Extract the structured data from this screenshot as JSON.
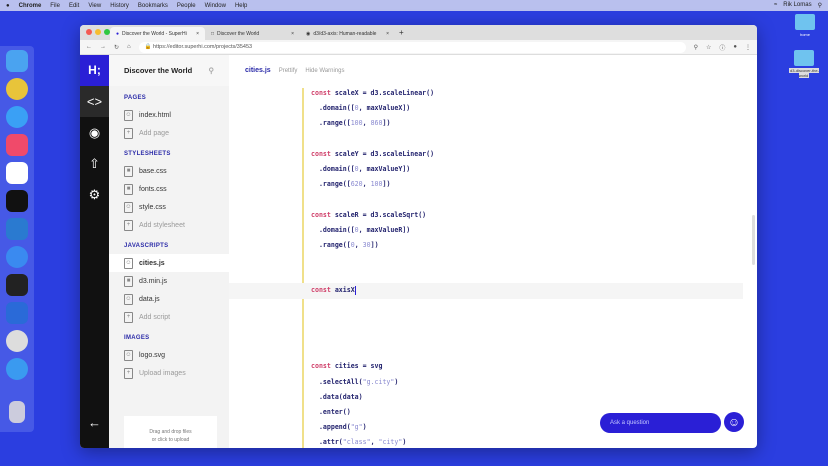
{
  "menubar": {
    "app": "Chrome",
    "items": [
      "File",
      "Edit",
      "View",
      "History",
      "Bookmarks",
      "People",
      "Window",
      "Help"
    ],
    "user": "Rik Lomas"
  },
  "desktop": {
    "folders": [
      "home",
      "d3-discover-the-world"
    ]
  },
  "browser": {
    "tabs": [
      "Discover the World - SuperHi",
      "Discover the World",
      "d3/d3-axis: Human-readable"
    ],
    "url": "https://editor.superhi.com/projects/35453"
  },
  "sidebar": {
    "title": "Discover the World",
    "sections": [
      {
        "title": "PAGES",
        "files": [
          "index.html"
        ],
        "add": "Add page"
      },
      {
        "title": "STYLESHEETS",
        "files": [
          "base.css",
          "fonts.css",
          "style.css"
        ],
        "add": "Add stylesheet"
      },
      {
        "title": "JAVASCRIPTS",
        "files": [
          "cities.js",
          "d3.min.js",
          "data.js"
        ],
        "add": "Add script"
      },
      {
        "title": "IMAGES",
        "files": [
          "logo.svg"
        ],
        "add": "Upload images"
      }
    ],
    "drop_line1": "Drag and drop files",
    "drop_line2": "or click to upload"
  },
  "editor": {
    "filename": "cities.js",
    "prettify": "Prettify",
    "hide_warnings": "Hide Warnings"
  },
  "chat": {
    "placeholder": "Ask a question"
  },
  "colors": {
    "accent": "#2a1fd6",
    "desktop": "#2b3ee0"
  }
}
